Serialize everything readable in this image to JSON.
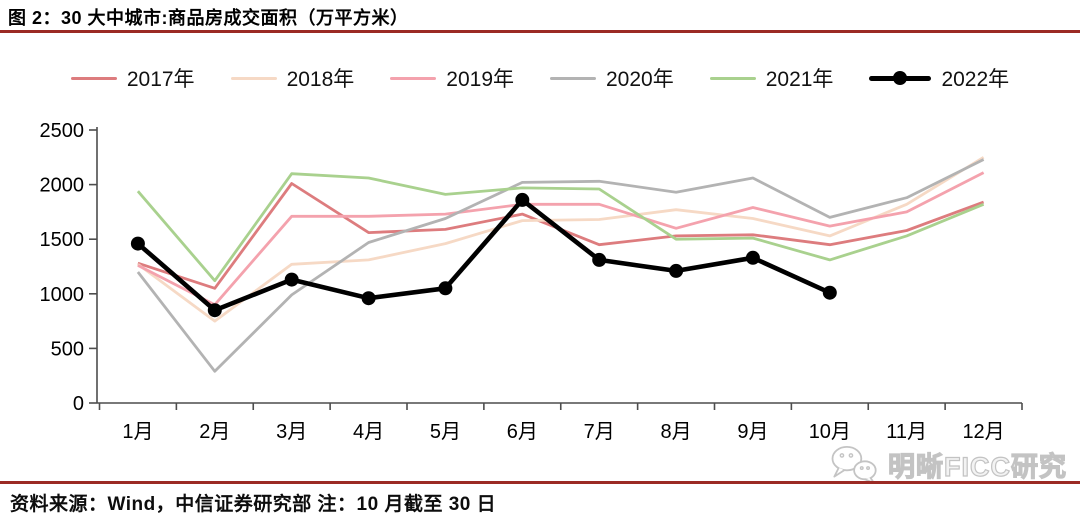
{
  "figure": {
    "title": "图 2：30 大中城市:商品房成交面积（万平方米）",
    "source_note": "资料来源：Wind，中信证券研究部  注：10 月截至 30 日",
    "watermark_text": "明晰FICC研究",
    "accent_rule_color": "#9b2a24"
  },
  "chart_data": {
    "type": "line",
    "title": "30 大中城市:商品房成交面积（万平方米）",
    "xlabel": "",
    "ylabel": "",
    "categories": [
      "1月",
      "2月",
      "3月",
      "4月",
      "5月",
      "6月",
      "7月",
      "8月",
      "9月",
      "10月",
      "11月",
      "12月"
    ],
    "series": [
      {
        "name": "2017年",
        "color": "#dd7c7e",
        "marker": false,
        "values": [
          1280,
          1050,
          2010,
          1560,
          1590,
          1730,
          1450,
          1530,
          1540,
          1450,
          1580,
          1840
        ]
      },
      {
        "name": "2018年",
        "color": "#f6d9c5",
        "marker": false,
        "values": [
          1270,
          750,
          1270,
          1310,
          1460,
          1670,
          1680,
          1770,
          1690,
          1530,
          1820,
          2250
        ]
      },
      {
        "name": "2019年",
        "color": "#f4a2ad",
        "marker": false,
        "values": [
          1260,
          900,
          1710,
          1710,
          1730,
          1820,
          1820,
          1600,
          1790,
          1620,
          1750,
          2110
        ]
      },
      {
        "name": "2020年",
        "color": "#b3b3b3",
        "marker": false,
        "values": [
          1200,
          290,
          990,
          1470,
          1690,
          2020,
          2030,
          1930,
          2060,
          1700,
          1880,
          2230
        ]
      },
      {
        "name": "2021年",
        "color": "#a9d18e",
        "marker": false,
        "values": [
          1940,
          1120,
          2100,
          2060,
          1910,
          1970,
          1960,
          1500,
          1510,
          1310,
          1530,
          1820
        ]
      },
      {
        "name": "2022年",
        "color": "#000000",
        "marker": true,
        "values": [
          1460,
          850,
          1130,
          960,
          1050,
          1860,
          1310,
          1210,
          1330,
          1010,
          null,
          null
        ]
      }
    ],
    "ylim": [
      0,
      2500
    ],
    "yticks": [
      0,
      500,
      1000,
      1500,
      2000,
      2500
    ],
    "legend_position": "top",
    "grid": false,
    "axis_color": "#4d4d4d"
  }
}
